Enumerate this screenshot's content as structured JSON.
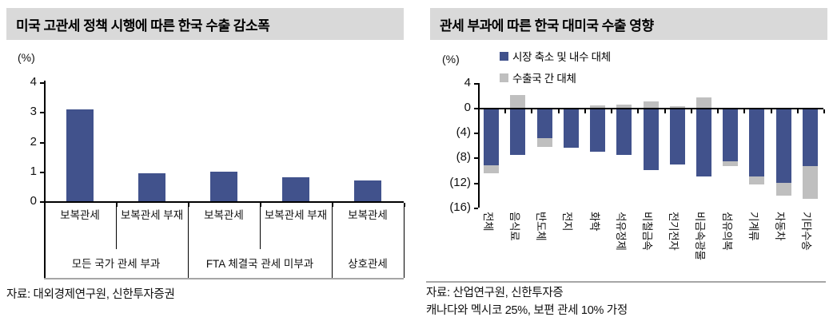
{
  "colors": {
    "navy": "#41528C",
    "gray": "#BFBFBF",
    "title_bg": "#D9D9D9",
    "axis": "#000000",
    "bottom_line": "#A6A6A6"
  },
  "left_panel": {
    "title": "미국 고관세 정책 시행에 따른 한국 수출 감소폭",
    "unit_label": "(%)",
    "source": "자료: 대외경제연구원, 신한투자증권"
  },
  "right_panel": {
    "title": "관세 부과에 따른 한국 대미국 수출 영향",
    "unit_label": "(%)",
    "legend": [
      {
        "label": "시장 축소 및 내수 대체",
        "color": "#41528C"
      },
      {
        "label": "수출국 간 대체",
        "color": "#BFBFBF"
      }
    ],
    "source_line1": "자료: 산업연구원, 신한투자증",
    "source_line2": "캐나다와 멕시코 25%, 보편 관세 10% 가정"
  },
  "chart_data": [
    {
      "type": "bar",
      "title": "미국 고관세 정책 시행에 따른 한국 수출 감소폭",
      "ylabel": "(%)",
      "ylim": [
        0,
        4
      ],
      "yticks": [
        0,
        1,
        2,
        3,
        4
      ],
      "categories": [
        "보복관세",
        "보복관세 부재",
        "보복관세",
        "보복관세 부재",
        "보복관세"
      ],
      "group_labels": [
        {
          "label": "모든 국가 관세 부과",
          "span": 2
        },
        {
          "label": "FTA 체결국 관세 미부과",
          "span": 2
        },
        {
          "label": "상호관세",
          "span": 1
        }
      ],
      "values": [
        3.1,
        0.95,
        1.0,
        0.8,
        0.7
      ],
      "bar_color": "#41528C",
      "grid": false,
      "legend_position": "none"
    },
    {
      "type": "bar",
      "subtype": "stacked",
      "title": "관세 부과에 따른 한국 대미국 수출 영향",
      "ylabel": "(%)",
      "ylim": [
        -16,
        4
      ],
      "yticks": [
        4,
        0,
        -4,
        -8,
        -12,
        -16
      ],
      "ytick_labels": [
        "4",
        "0",
        "(4)",
        "(8)",
        "(12)",
        "(16)"
      ],
      "categories": [
        "전체",
        "음식료",
        "반도체",
        "전지",
        "화학",
        "석유정제",
        "비철금속",
        "전기전자",
        "비금속광물",
        "섬유의복",
        "기계류",
        "자동차",
        "기타수송"
      ],
      "series": [
        {
          "name": "시장 축소 및 내수 대체",
          "color": "#41528C",
          "values": [
            -9.2,
            -7.6,
            -4.9,
            -6.4,
            -7.0,
            -7.5,
            -10.0,
            -9.1,
            -11.0,
            -8.6,
            -11.0,
            -12.1,
            -9.3
          ]
        },
        {
          "name": "수출국 간 대체",
          "color": "#BFBFBF",
          "values": [
            -1.3,
            2.0,
            -1.4,
            0,
            0.4,
            0.5,
            1.0,
            0.3,
            1.7,
            -0.8,
            -1.3,
            -2.0,
            -5.3
          ]
        }
      ],
      "grid": false,
      "legend_position": "top",
      "note": "캐나다와 멕시코 25%, 보편 관세 10% 가정"
    }
  ]
}
